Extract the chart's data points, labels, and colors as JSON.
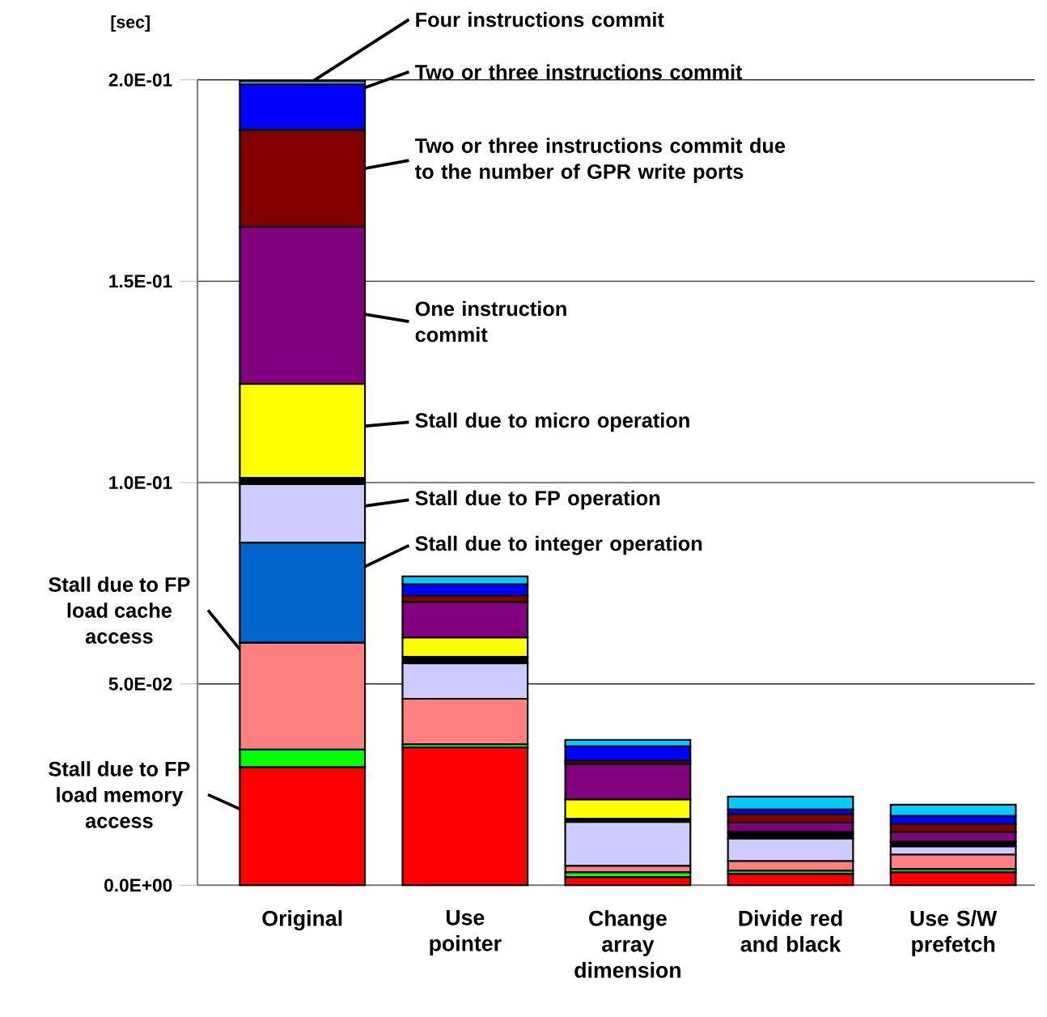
{
  "chart_data": {
    "type": "bar",
    "stacked": true,
    "ylabel": "[sec]",
    "categories": [
      "Original",
      "Use pointer",
      "Change array dimension",
      "Divide red and black",
      "Use S/W prefetch"
    ],
    "ylim": [
      0,
      0.2
    ],
    "yticks": [
      {
        "value": 0,
        "label": "0.0E+00"
      },
      {
        "value": 0.05,
        "label": "5.0E-02"
      },
      {
        "value": 0.1,
        "label": "1.0E-01"
      },
      {
        "value": 0.15,
        "label": "1.5E-01"
      },
      {
        "value": 0.2,
        "label": "2.0E-01"
      }
    ],
    "grid": "y",
    "legend": "top left",
    "series": [
      {
        "name": "Stall due to FP load memory access",
        "color": "#ff0000",
        "values": [
          0.0293,
          0.0342,
          0.002,
          0.0028,
          0.0032
        ]
      },
      {
        "color": "#00ff00",
        "values": [
          0.0044,
          0.0008,
          0.0012,
          0.0008,
          0.0008
        ]
      },
      {
        "name": "Stall due to FP load cache access",
        "color": "#ff8080",
        "values": [
          0.0265,
          0.0113,
          0.0016,
          0.0024,
          0.0036
        ]
      },
      {
        "name": "Stall due to integer operation",
        "color": "#0066cc",
        "values": [
          0.0249,
          0,
          0,
          0,
          0
        ]
      },
      {
        "name": "Stall due to FP operation",
        "color": "#ccccff",
        "values": [
          0.0145,
          0.0088,
          0.0109,
          0.0056,
          0.002
        ]
      },
      {
        "color": "#000000",
        "values": [
          0.0016,
          0.0016,
          0.0008,
          0.0016,
          0.0012
        ]
      },
      {
        "name": "Stall due to micro operation",
        "color": "#ffff00",
        "values": [
          0.0233,
          0.0048,
          0.0048,
          0,
          0
        ]
      },
      {
        "name": "One instruction commit",
        "color": "#800080",
        "values": [
          0.039,
          0.0088,
          0.0088,
          0.0024,
          0.0024
        ]
      },
      {
        "name": "Two or three instructions commit due to the number of GPR write ports",
        "color": "#800000",
        "values": [
          0.0241,
          0.0016,
          0.0008,
          0.002,
          0.002
        ]
      },
      {
        "name": "Two or three instructions commit",
        "color": "#0000ff",
        "values": [
          0.0113,
          0.0028,
          0.0036,
          0.0012,
          0.002
        ]
      },
      {
        "name": "Four instructions commit",
        "color": "#00ccff",
        "values": [
          0.0008,
          0.002,
          0.0016,
          0.0032,
          0.0028
        ]
      }
    ]
  }
}
